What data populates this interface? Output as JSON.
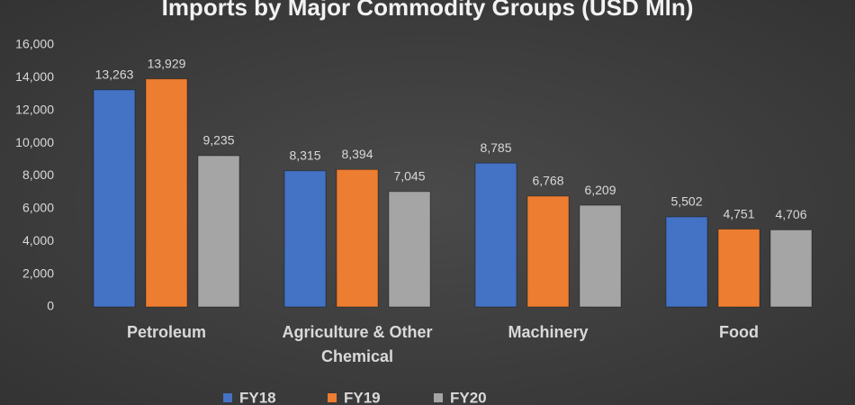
{
  "chart_data": {
    "type": "bar",
    "title": "Imports by Major Commodity Groups (USD Mln)",
    "categories": [
      "Petroleum",
      "Agriculture & Other Chemical",
      "Machinery",
      "Food"
    ],
    "series": [
      {
        "name": "FY18",
        "color": "#4472c4",
        "values": [
          13263,
          8315,
          8785,
          5502
        ],
        "value_labels": [
          "13,263",
          "8,315",
          "8,785",
          "5,502"
        ]
      },
      {
        "name": "FY19",
        "color": "#ed7d31",
        "values": [
          13929,
          8394,
          6768,
          4751
        ],
        "value_labels": [
          "13,929",
          "8,394",
          "6,768",
          "4,751"
        ]
      },
      {
        "name": "FY20",
        "color": "#a5a5a5",
        "values": [
          9235,
          7045,
          6209,
          4706
        ],
        "value_labels": [
          "9,235",
          "7,045",
          "6,209",
          "4,706"
        ]
      }
    ],
    "ylim": [
      0,
      16000
    ],
    "yticks": [
      0,
      {
        "value": 2000,
        "label": "2,000"
      },
      {
        "value": 4000,
        "label": "4,000"
      },
      {
        "value": 6000,
        "label": "6,000"
      },
      {
        "value": 8000,
        "label": "8,000"
      },
      {
        "value": 10000,
        "label": "10,000"
      },
      {
        "value": 12000,
        "label": "12,000"
      },
      {
        "value": 14000,
        "label": "14,000"
      },
      {
        "value": 16000,
        "label": "16,000"
      }
    ],
    "grid": false,
    "legend": "bottom"
  }
}
